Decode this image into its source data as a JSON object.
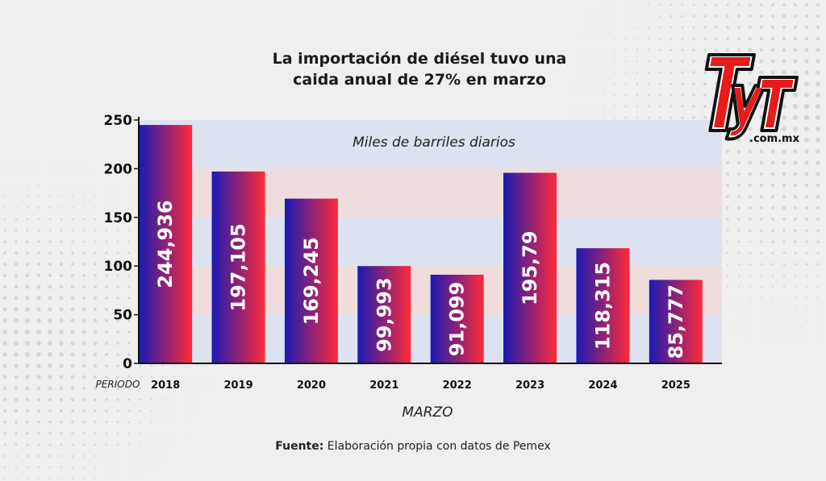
{
  "title": {
    "line1": "La importación de diésel tuvo una",
    "line2": "caida anual de 27% en marzo"
  },
  "logo": {
    "main": "TyT",
    "sub": ".com.mx"
  },
  "source": {
    "label": "Fuente:",
    "text": " Elaboración propia con datos de Pemex"
  },
  "colors": {
    "bar_start": "#1a1ab4",
    "bar_end": "#ff2a3a",
    "band_blue": "#dde2f0",
    "band_pink": "#efdcdc"
  },
  "chart_data": {
    "type": "bar",
    "title": "La importación de diésel tuvo una caida anual de 27% en marzo",
    "annotation": "Miles de barriles diarios",
    "xlabel": "MARZO",
    "x_prefix_label": "PERIODO",
    "categories": [
      "2018",
      "2019",
      "2020",
      "2021",
      "2022",
      "2023",
      "2024",
      "2025"
    ],
    "values": [
      244.936,
      197.105,
      169.245,
      99.993,
      91.099,
      195.79,
      118.315,
      85.777
    ],
    "value_labels": [
      "244,936",
      "197,105",
      "169,245",
      "99,993",
      "91,099",
      "195,79",
      "118,315",
      "85,777"
    ],
    "yticks": [
      0,
      50,
      100,
      150,
      200,
      250
    ],
    "ylim": [
      0,
      250
    ],
    "grid": false,
    "legend": "none"
  }
}
